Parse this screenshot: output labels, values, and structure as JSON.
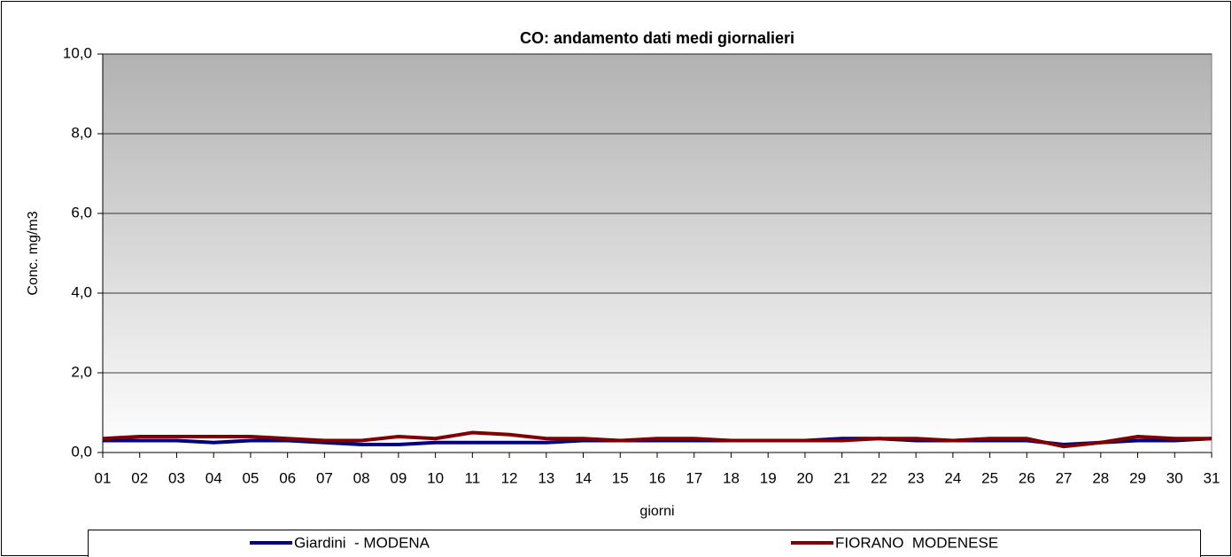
{
  "chart_data": {
    "type": "line",
    "title": "CO: andamento dati medi giornalieri",
    "y_label": "Conc. mg/m3",
    "x_label": "giorni",
    "categories": [
      "01",
      "02",
      "03",
      "04",
      "05",
      "06",
      "07",
      "08",
      "09",
      "10",
      "11",
      "12",
      "13",
      "14",
      "15",
      "16",
      "17",
      "18",
      "19",
      "20",
      "21",
      "22",
      "23",
      "24",
      "25",
      "26",
      "27",
      "28",
      "29",
      "30",
      "31"
    ],
    "series": [
      {
        "name": "Giardini  - MODENA",
        "color": "#000080",
        "values": [
          0.3,
          0.3,
          0.3,
          0.25,
          0.3,
          0.3,
          0.25,
          0.2,
          0.2,
          0.25,
          0.25,
          0.25,
          0.25,
          0.3,
          0.3,
          0.3,
          0.3,
          0.3,
          0.3,
          0.3,
          0.35,
          0.35,
          0.3,
          0.3,
          0.3,
          0.3,
          0.2,
          0.25,
          0.3,
          0.3,
          0.35
        ]
      },
      {
        "name": "FIORANO  MODENESE",
        "color": "#800000",
        "values": [
          0.35,
          0.4,
          0.4,
          0.4,
          0.4,
          0.35,
          0.3,
          0.3,
          0.4,
          0.35,
          0.5,
          0.45,
          0.35,
          0.35,
          0.3,
          0.35,
          0.35,
          0.3,
          0.3,
          0.3,
          0.3,
          0.35,
          0.35,
          0.3,
          0.35,
          0.35,
          0.15,
          0.25,
          0.4,
          0.35,
          0.35
        ]
      }
    ],
    "ylim": [
      0,
      10
    ],
    "yticks": [
      {
        "value": 0,
        "label": "0,0"
      },
      {
        "value": 2,
        "label": "2,0"
      },
      {
        "value": 4,
        "label": "4,0"
      },
      {
        "value": 6,
        "label": "6,0"
      },
      {
        "value": 8,
        "label": "8,0"
      },
      {
        "value": 10,
        "label": "10,0"
      }
    ],
    "grid": true,
    "legend": "bottom"
  }
}
